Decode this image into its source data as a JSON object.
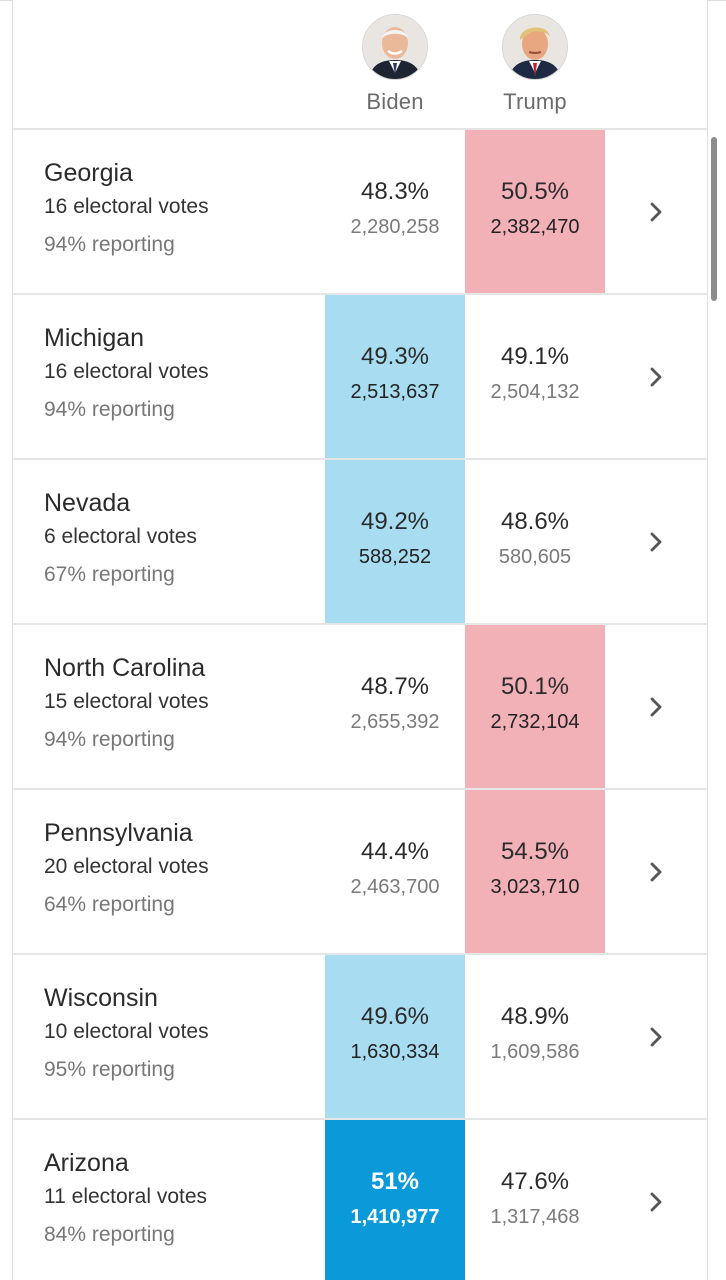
{
  "header": {
    "candidates": [
      {
        "name": "Biden",
        "avatar_icon": "biden-portrait-icon"
      },
      {
        "name": "Trump",
        "avatar_icon": "trump-portrait-icon"
      }
    ]
  },
  "colors": {
    "lead_red": "#f1b1b6",
    "lead_blue": "#a8dcf0",
    "win_blue": "#0a9ad9"
  },
  "states": [
    {
      "name": "Georgia",
      "electoral_votes": "16 electoral votes",
      "reporting": "94% reporting",
      "biden_pct": "48.3%",
      "biden_votes": "2,280,258",
      "trump_pct": "50.5%",
      "trump_votes": "2,382,470",
      "leader": "trump",
      "status": "leading"
    },
    {
      "name": "Michigan",
      "electoral_votes": "16 electoral votes",
      "reporting": "94% reporting",
      "biden_pct": "49.3%",
      "biden_votes": "2,513,637",
      "trump_pct": "49.1%",
      "trump_votes": "2,504,132",
      "leader": "biden",
      "status": "leading"
    },
    {
      "name": "Nevada",
      "electoral_votes": "6 electoral votes",
      "reporting": "67% reporting",
      "biden_pct": "49.2%",
      "biden_votes": "588,252",
      "trump_pct": "48.6%",
      "trump_votes": "580,605",
      "leader": "biden",
      "status": "leading"
    },
    {
      "name": "North Carolina",
      "electoral_votes": "15 electoral votes",
      "reporting": "94% reporting",
      "biden_pct": "48.7%",
      "biden_votes": "2,655,392",
      "trump_pct": "50.1%",
      "trump_votes": "2,732,104",
      "leader": "trump",
      "status": "leading"
    },
    {
      "name": "Pennsylvania",
      "electoral_votes": "20 electoral votes",
      "reporting": "64% reporting",
      "biden_pct": "44.4%",
      "biden_votes": "2,463,700",
      "trump_pct": "54.5%",
      "trump_votes": "3,023,710",
      "leader": "trump",
      "status": "leading"
    },
    {
      "name": "Wisconsin",
      "electoral_votes": "10 electoral votes",
      "reporting": "95% reporting",
      "biden_pct": "49.6%",
      "biden_votes": "1,630,334",
      "trump_pct": "48.9%",
      "trump_votes": "1,609,586",
      "leader": "biden",
      "status": "leading"
    },
    {
      "name": "Arizona",
      "electoral_votes": "11 electoral votes",
      "reporting": "84% reporting",
      "biden_pct": "51%",
      "biden_votes": "1,410,977",
      "trump_pct": "47.6%",
      "trump_votes": "1,317,468",
      "leader": "biden",
      "status": "winner"
    }
  ]
}
